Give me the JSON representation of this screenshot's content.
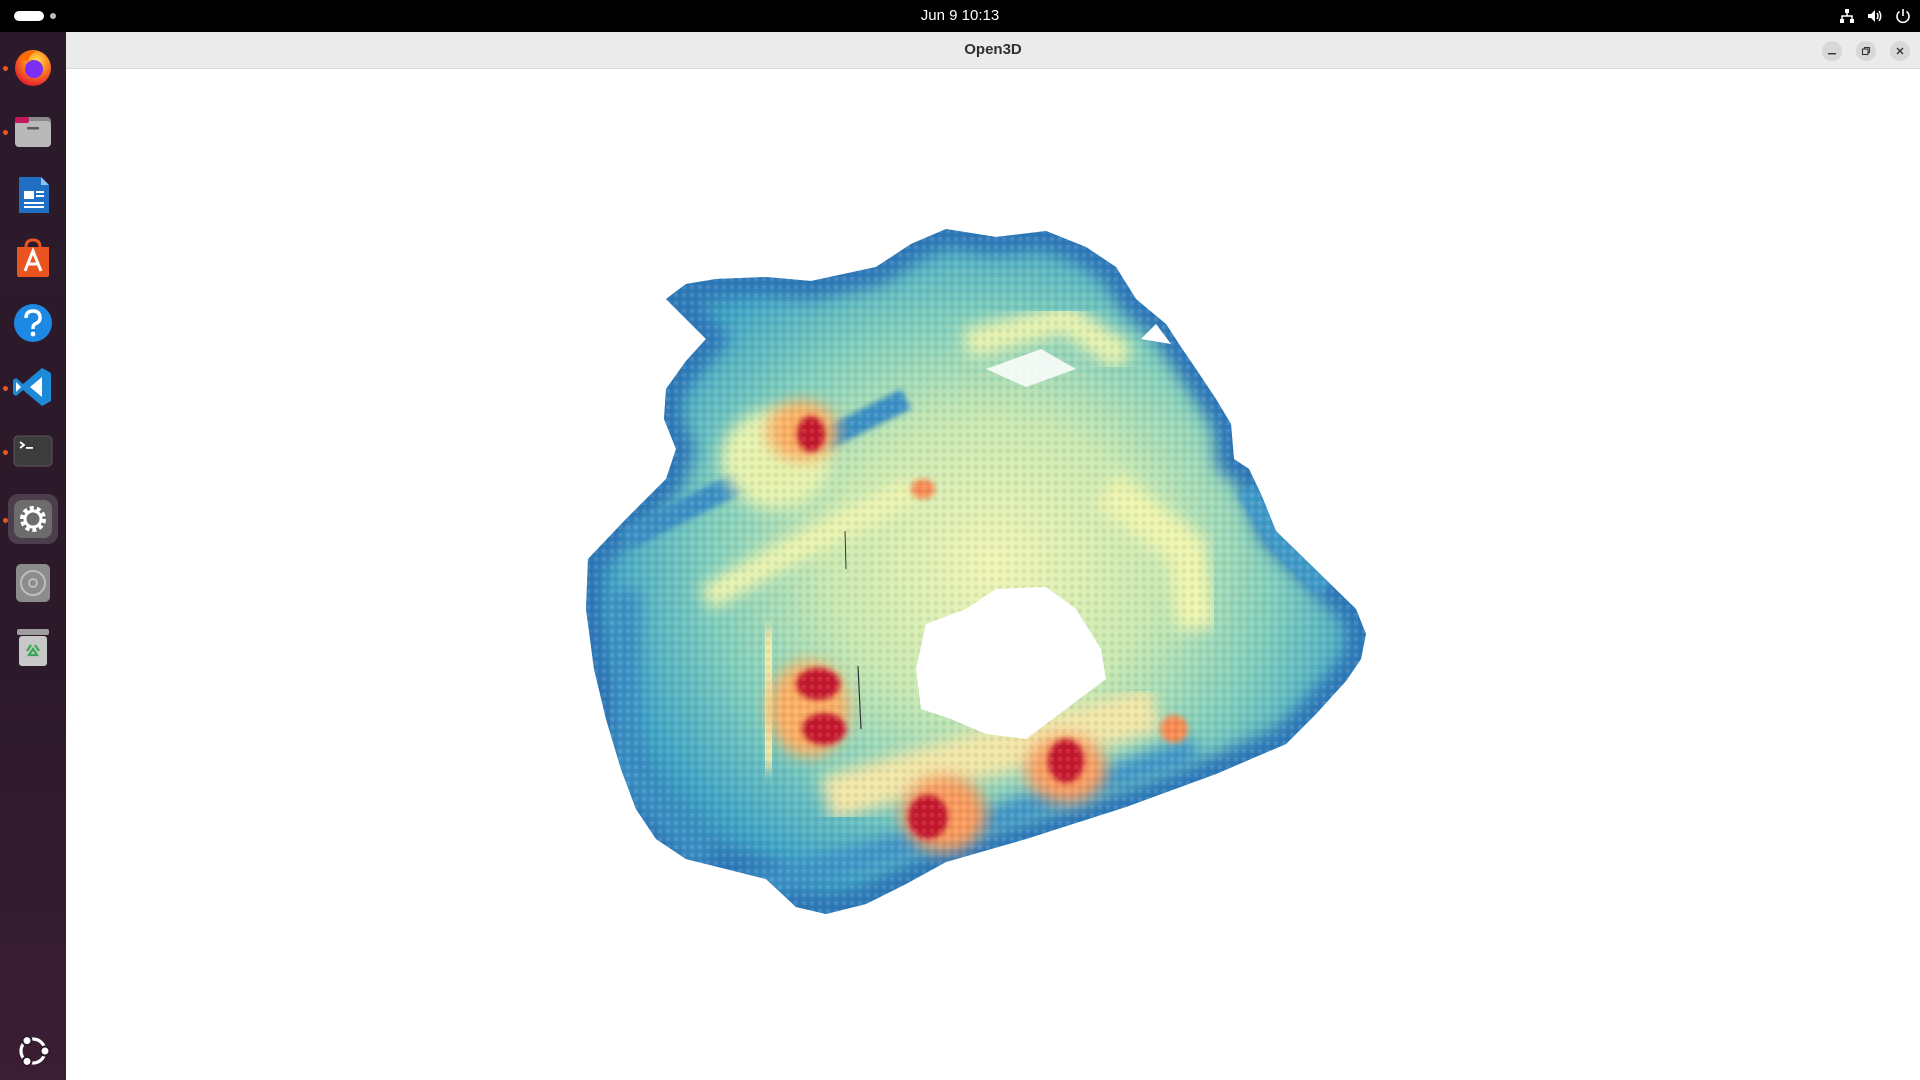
{
  "topbar": {
    "clock": "Jun 9  10:13",
    "tray_icons": [
      "network-icon",
      "volume-icon",
      "power-icon"
    ]
  },
  "dock": {
    "items": [
      {
        "name": "firefox",
        "icon": "firefox-icon",
        "running": true
      },
      {
        "name": "files",
        "icon": "files-icon",
        "running": true
      },
      {
        "name": "writer",
        "icon": "libreoffice-writer-icon",
        "running": false
      },
      {
        "name": "software",
        "icon": "app-center-icon",
        "running": false
      },
      {
        "name": "help",
        "icon": "help-icon",
        "running": false
      },
      {
        "name": "vscode",
        "icon": "vscode-icon",
        "running": true
      },
      {
        "name": "terminal",
        "icon": "terminal-icon",
        "running": true
      },
      {
        "name": "settings",
        "icon": "settings-icon",
        "running": true,
        "active": true
      },
      {
        "name": "disc",
        "icon": "optical-disc-icon",
        "running": false
      },
      {
        "name": "trash",
        "icon": "trash-icon",
        "running": false
      }
    ],
    "show_apps_icon": "ubuntu-logo-icon"
  },
  "window": {
    "title": "Open3D",
    "controls": [
      "minimize",
      "restore",
      "close"
    ]
  },
  "viewer": {
    "content": "point-cloud",
    "colormap": [
      "#2c7bb6",
      "#3fa3c4",
      "#7fcdbb",
      "#c7e9b4",
      "#f5f5b0",
      "#fdae61",
      "#d7191c",
      "#b2182b"
    ]
  }
}
